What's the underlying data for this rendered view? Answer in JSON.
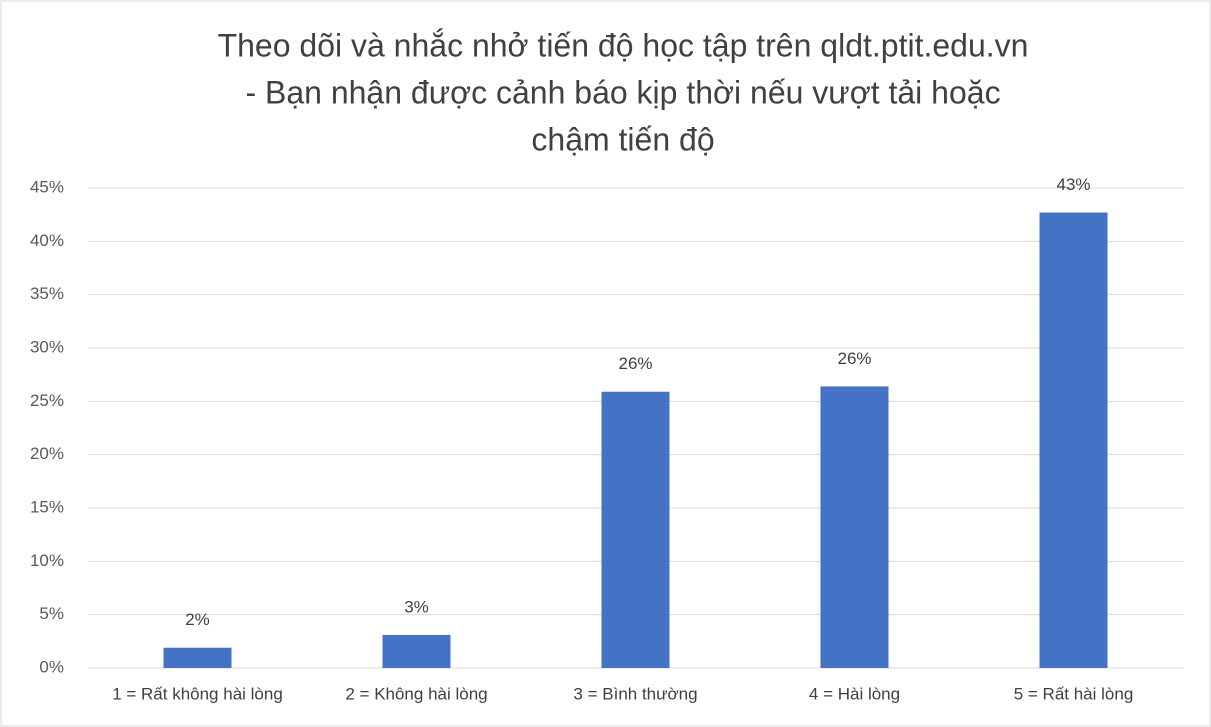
{
  "chart_data": {
    "type": "bar",
    "title": [
      "Theo dõi và nhắc nhở tiến độ học tập trên qldt.ptit.edu.vn",
      "- Bạn nhận được cảnh báo kịp thời nếu vượt tải hoặc",
      "chậm tiến độ"
    ],
    "categories": [
      "1 = Rất không hài lòng",
      "2 = Không hài lòng",
      "3 = Bình thường",
      "4 = Hài lòng",
      "5 = Rất hài lòng"
    ],
    "values": [
      1.9,
      3.1,
      25.9,
      26.4,
      42.7
    ],
    "value_labels": [
      "2%",
      "3%",
      "26%",
      "26%",
      "43%"
    ],
    "color": "#4472c4",
    "ylim": [
      0,
      45
    ],
    "yticks": [
      {
        "value": 0,
        "label": "0%"
      },
      {
        "value": 5,
        "label": "5%"
      },
      {
        "value": 10,
        "label": "10%"
      },
      {
        "value": 15,
        "label": "15%"
      },
      {
        "value": 20,
        "label": "20%"
      },
      {
        "value": 25,
        "label": "25%"
      },
      {
        "value": 30,
        "label": "30%"
      },
      {
        "value": 35,
        "label": "35%"
      },
      {
        "value": 40,
        "label": "40%"
      },
      {
        "value": 45,
        "label": "45%"
      }
    ],
    "grid": true
  }
}
